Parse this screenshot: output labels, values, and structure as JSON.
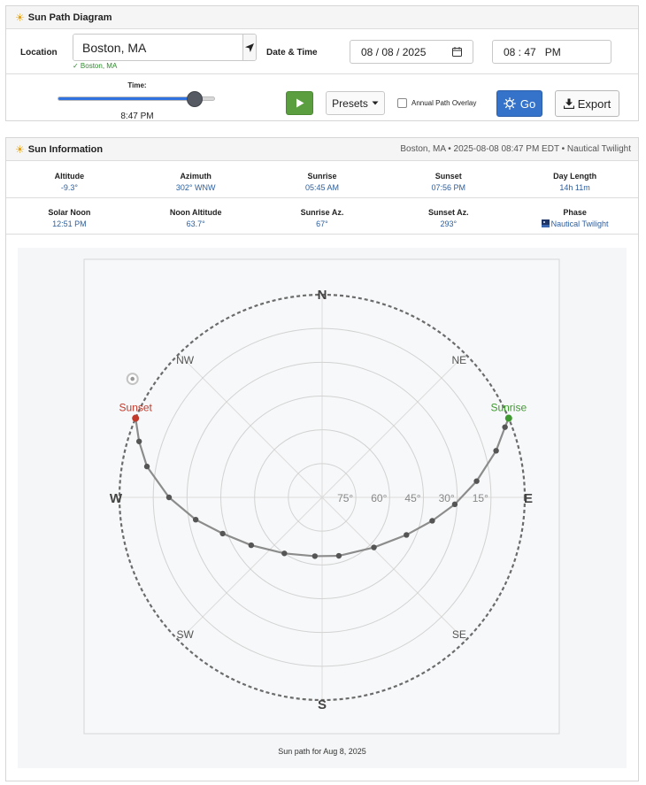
{
  "header": {
    "title": "Sun Path Diagram"
  },
  "location": {
    "label": "Location",
    "value": "Boston, MA",
    "status": "✓ Boston, MA",
    "locate_icon": "navigation-arrow-icon"
  },
  "datetime": {
    "label": "Date & Time",
    "date": "08 / 08 / 2025",
    "time": "08 : 47   PM",
    "calendar_icon": "calendar-icon"
  },
  "time_slider": {
    "label": "Time:",
    "value_text": "8:47 PM",
    "position_fraction": 0.87
  },
  "controls": {
    "play_icon": "play-icon",
    "presets_label": "Presets",
    "overlay_label": "Annual Path Overlay",
    "overlay_checked": false,
    "go_label": "Go",
    "export_label": "Export"
  },
  "sun_info": {
    "title": "Sun Information",
    "meta": "Boston, MA • 2025-08-08 08:47 PM EDT • Nautical Twilight",
    "row1": [
      {
        "key": "Altitude",
        "value": "-9.3°"
      },
      {
        "key": "Azimuth",
        "value": "302° WNW"
      },
      {
        "key": "Sunrise",
        "value": "05:45 AM"
      },
      {
        "key": "Sunset",
        "value": "07:56 PM"
      },
      {
        "key": "Day Length",
        "value": "14h 11m"
      }
    ],
    "row2": [
      {
        "key": "Solar Noon",
        "value": "12:51 PM"
      },
      {
        "key": "Noon Altitude",
        "value": "63.7°"
      },
      {
        "key": "Sunrise Az.",
        "value": "67°"
      },
      {
        "key": "Sunset Az.",
        "value": "293°"
      },
      {
        "key": "Phase",
        "value": "Nautical Twilight"
      }
    ]
  },
  "chart_data": {
    "type": "scatter",
    "projection": "polar",
    "caption": "Sun path for Aug 8, 2025",
    "directions": [
      "N",
      "NE",
      "E",
      "SE",
      "S",
      "SW",
      "W",
      "NW"
    ],
    "altitude_rings": [
      75,
      60,
      45,
      30,
      15
    ],
    "ring_labels": [
      "75°",
      "60°",
      "45°",
      "30°",
      "15°"
    ],
    "path": [
      {
        "az": 67,
        "alt": 0
      },
      {
        "az": 69,
        "alt": 3
      },
      {
        "az": 75,
        "alt": 10
      },
      {
        "az": 84,
        "alt": 21
      },
      {
        "az": 93,
        "alt": 31
      },
      {
        "az": 102,
        "alt": 40
      },
      {
        "az": 114,
        "alt": 49
      },
      {
        "az": 134,
        "alt": 58
      },
      {
        "az": 164,
        "alt": 63
      },
      {
        "az": 187,
        "alt": 63.7
      },
      {
        "az": 214,
        "alt": 60
      },
      {
        "az": 236,
        "alt": 52
      },
      {
        "az": 250,
        "alt": 43
      },
      {
        "az": 260,
        "alt": 33
      },
      {
        "az": 270,
        "alt": 22
      },
      {
        "az": 280,
        "alt": 11
      },
      {
        "az": 287,
        "alt": 5
      },
      {
        "az": 293,
        "alt": 0
      }
    ],
    "sunrise": {
      "label": "Sunrise",
      "az": 67,
      "alt": 0,
      "color": "#3e9a2f"
    },
    "sunset": {
      "label": "Sunset",
      "az": 293,
      "alt": 0,
      "color": "#c0392b"
    },
    "current": {
      "az": 302,
      "alt": -9.3
    }
  }
}
